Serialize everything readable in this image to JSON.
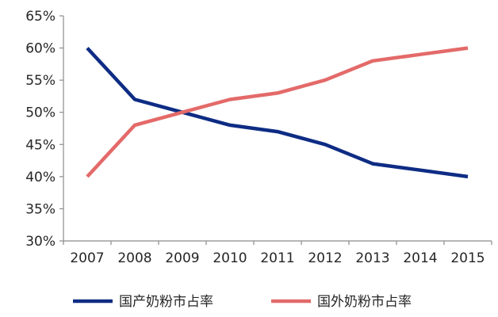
{
  "chart_data": {
    "type": "line",
    "categories": [
      "2007",
      "2008",
      "2009",
      "2010",
      "2011",
      "2012",
      "2013",
      "2014",
      "2015"
    ],
    "series": [
      {
        "name": "国产奶粉市占率",
        "color": "#0E2C84",
        "values": [
          60,
          52,
          50,
          48,
          47,
          45,
          42,
          41,
          40
        ]
      },
      {
        "name": "国外奶粉市占率",
        "color": "#E36A69",
        "values": [
          40,
          48,
          50,
          52,
          53,
          55,
          58,
          59,
          60
        ]
      }
    ],
    "ylim": [
      30,
      65
    ],
    "yticks": [
      30,
      35,
      40,
      45,
      50,
      55,
      60,
      65
    ],
    "ytick_labels": [
      "30%",
      "35%",
      "40%",
      "45%",
      "50%",
      "55%",
      "60%",
      "65%"
    ],
    "grid": false,
    "legend_position": "bottom"
  }
}
